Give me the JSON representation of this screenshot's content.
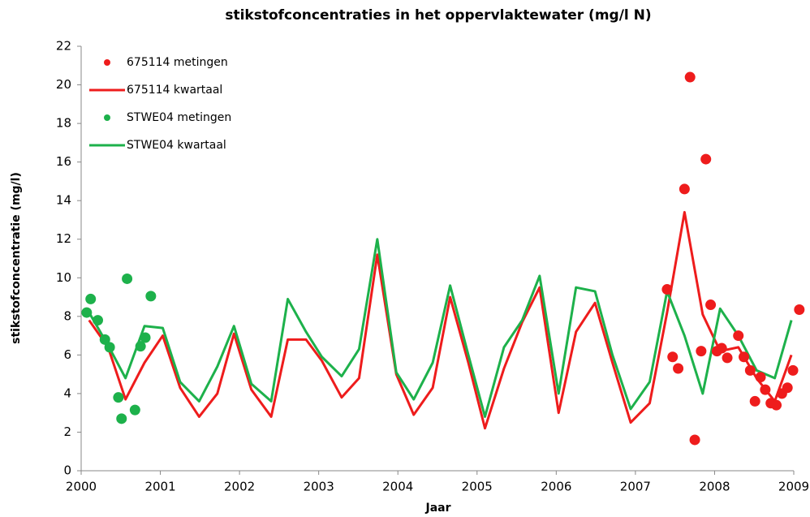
{
  "chart_data": {
    "type": "scatter-line",
    "title": "stikstofconcentraties in het oppervlaktewater (mg/l N)",
    "x_label": "Jaar",
    "y_label": "stikstofconcentratie (mg/l)",
    "xlim": [
      2000,
      2009
    ],
    "xticks": [
      2000,
      2001,
      2002,
      2003,
      2004,
      2005,
      2006,
      2007,
      2008,
      2009
    ],
    "ylim": [
      0,
      22
    ],
    "yticks": [
      0,
      2,
      4,
      6,
      8,
      10,
      12,
      14,
      16,
      18,
      20,
      22
    ],
    "grid": false,
    "legend": "upper left",
    "series": [
      {
        "name": "675114 metingen",
        "mode": "markers",
        "color": "#ee1c1c",
        "x": [
          2007.4,
          2007.47,
          2007.54,
          2007.62,
          2007.69,
          2007.75,
          2007.83,
          2007.89,
          2007.95,
          2008.03,
          2008.09,
          2008.16,
          2008.3,
          2008.37,
          2008.45,
          2008.51,
          2008.58,
          2008.64,
          2008.71,
          2008.78,
          2008.85,
          2008.92,
          2008.99,
          2009.07
        ],
        "values": [
          9.4,
          5.9,
          5.3,
          14.6,
          20.4,
          1.6,
          6.2,
          16.15,
          8.6,
          6.2,
          6.35,
          5.85,
          7.0,
          5.9,
          5.2,
          3.6,
          4.85,
          4.2,
          3.5,
          3.4,
          4.0,
          4.3,
          5.2,
          8.35
        ]
      },
      {
        "name": "675114 kwartaal",
        "mode": "lines",
        "color": "#ee1c1c",
        "x": [
          2000.1,
          2000.34,
          2000.56,
          2000.8,
          2001.03,
          2001.25,
          2001.49,
          2001.72,
          2001.93,
          2002.15,
          2002.4,
          2002.61,
          2002.84,
          2003.04,
          2003.29,
          2003.51,
          2003.74,
          2003.98,
          2004.2,
          2004.44,
          2004.66,
          2004.89,
          2005.1,
          2005.34,
          2005.57,
          2005.79,
          2006.03,
          2006.25,
          2006.49,
          2006.71,
          2006.94,
          2007.18,
          2007.4,
          2007.62,
          2007.85,
          2008.07,
          2008.3,
          2008.53,
          2008.76,
          2008.97
        ],
        "values": [
          7.8,
          6.4,
          3.7,
          5.6,
          7.0,
          4.3,
          2.8,
          4.0,
          7.1,
          4.2,
          2.8,
          6.8,
          6.8,
          5.7,
          3.8,
          4.8,
          11.2,
          5.0,
          2.9,
          4.3,
          9.0,
          5.6,
          2.2,
          5.3,
          7.7,
          9.5,
          3.0,
          7.2,
          8.7,
          5.6,
          2.5,
          3.5,
          8.2,
          13.4,
          8.1,
          6.2,
          6.4,
          4.8,
          3.6,
          6.0
        ]
      },
      {
        "name": "STWE04 metingen",
        "mode": "markers",
        "color": "#1db14b",
        "x": [
          2000.07,
          2000.12,
          2000.21,
          2000.3,
          2000.36,
          2000.47,
          2000.51,
          2000.58,
          2000.68,
          2000.75,
          2000.81,
          2000.88
        ],
        "values": [
          8.2,
          8.9,
          7.8,
          6.8,
          6.4,
          3.8,
          2.7,
          9.95,
          3.15,
          6.45,
          6.9,
          9.05
        ]
      },
      {
        "name": "STWE04 kwartaal",
        "mode": "lines",
        "color": "#1db14b",
        "x": [
          2000.1,
          2000.34,
          2000.56,
          2000.8,
          2001.03,
          2001.25,
          2001.49,
          2001.72,
          2001.93,
          2002.15,
          2002.4,
          2002.61,
          2002.84,
          2003.04,
          2003.29,
          2003.51,
          2003.74,
          2003.98,
          2004.2,
          2004.44,
          2004.66,
          2004.89,
          2005.1,
          2005.34,
          2005.57,
          2005.79,
          2006.03,
          2006.25,
          2006.49,
          2006.71,
          2006.94,
          2007.18,
          2007.4,
          2007.62,
          2007.85,
          2008.07,
          2008.3,
          2008.53,
          2008.76,
          2008.97
        ],
        "values": [
          8.2,
          6.5,
          4.8,
          7.5,
          7.4,
          4.6,
          3.6,
          5.4,
          7.5,
          4.5,
          3.6,
          8.9,
          7.2,
          5.9,
          4.9,
          6.3,
          12.0,
          5.1,
          3.7,
          5.6,
          9.6,
          6.0,
          2.8,
          6.4,
          7.8,
          10.1,
          4.0,
          9.5,
          9.3,
          6.0,
          3.2,
          4.6,
          9.3,
          7.0,
          4.0,
          8.4,
          7.0,
          5.2,
          4.8,
          7.8
        ]
      }
    ]
  }
}
